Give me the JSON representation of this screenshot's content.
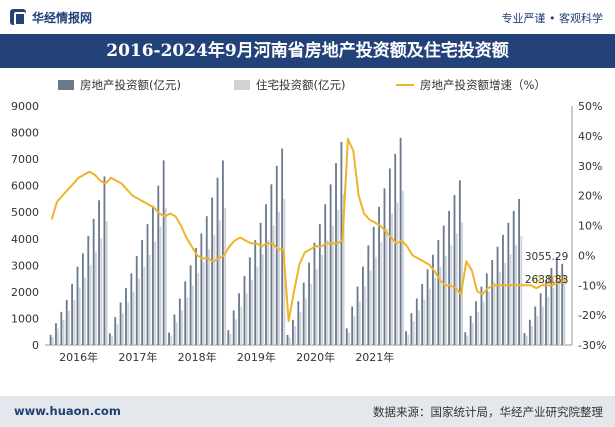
{
  "header": {
    "site_name": "华经情报网",
    "slogan": "专业严谨 • 客观科学"
  },
  "chart_data": {
    "type": "bar+line",
    "title": "2016-2024年9月河南省房地产投资额及住宅投资额",
    "legend_position": "top",
    "grid": false,
    "x_tick_labels": [
      "2016年",
      "2017年",
      "2018年",
      "2019年",
      "2020年",
      "2021年"
    ],
    "y_left": {
      "min": 0,
      "max": 9000,
      "step": 1000
    },
    "y_right": {
      "min": -30,
      "max": 50,
      "step": 10,
      "suffix": "%"
    },
    "months": [
      "2016-02",
      "2016-03",
      "2016-04",
      "2016-05",
      "2016-06",
      "2016-07",
      "2016-08",
      "2016-09",
      "2016-10",
      "2016-11",
      "2016-12",
      "2017-02",
      "2017-03",
      "2017-04",
      "2017-05",
      "2017-06",
      "2017-07",
      "2017-08",
      "2017-09",
      "2017-10",
      "2017-11",
      "2017-12",
      "2018-02",
      "2018-03",
      "2018-04",
      "2018-05",
      "2018-06",
      "2018-07",
      "2018-08",
      "2018-09",
      "2018-10",
      "2018-11",
      "2018-12",
      "2019-02",
      "2019-03",
      "2019-04",
      "2019-05",
      "2019-06",
      "2019-07",
      "2019-08",
      "2019-09",
      "2019-10",
      "2019-11",
      "2019-12",
      "2020-02",
      "2020-03",
      "2020-04",
      "2020-05",
      "2020-06",
      "2020-07",
      "2020-08",
      "2020-09",
      "2020-10",
      "2020-11",
      "2020-12",
      "2021-02",
      "2021-03",
      "2021-04",
      "2021-05",
      "2021-06",
      "2021-07",
      "2021-08",
      "2021-09",
      "2021-10",
      "2021-11",
      "2021-12",
      "2022-02",
      "2022-03",
      "2022-04",
      "2022-05",
      "2022-06",
      "2022-07",
      "2022-08",
      "2022-09",
      "2022-10",
      "2022-11",
      "2022-12",
      "2023-02",
      "2023-03",
      "2023-04",
      "2023-05",
      "2023-06",
      "2023-07",
      "2023-08",
      "2023-09",
      "2023-10",
      "2023-11",
      "2023-12",
      "2024-02",
      "2024-03",
      "2024-04",
      "2024-05",
      "2024-06",
      "2024-07",
      "2024-08",
      "2024-09"
    ],
    "series": [
      {
        "name": "房地产投资额(亿元)",
        "kind": "bar",
        "color": "#6b7a8f",
        "values": [
          380,
          820,
          1250,
          1700,
          2300,
          2950,
          3450,
          4100,
          4750,
          5450,
          6350,
          440,
          1050,
          1600,
          2150,
          2700,
          3350,
          3950,
          4550,
          5250,
          6000,
          6950,
          470,
          1150,
          1750,
          2400,
          3000,
          3650,
          4200,
          4850,
          5550,
          6300,
          6950,
          560,
          1300,
          1950,
          2600,
          3300,
          3950,
          4600,
          5300,
          6050,
          6750,
          7400,
          380,
          950,
          1650,
          2350,
          3100,
          3850,
          4550,
          5300,
          6050,
          6850,
          7650,
          630,
          1450,
          2200,
          2950,
          3750,
          4450,
          5200,
          5900,
          6650,
          7200,
          7800,
          520,
          1200,
          1750,
          2300,
          2850,
          3400,
          3950,
          4500,
          5050,
          5650,
          6200,
          480,
          1100,
          1650,
          2200,
          2700,
          3200,
          3700,
          4150,
          4600,
          5050,
          5500,
          450,
          950,
          1450,
          1950,
          2450,
          2900,
          3300,
          3055.29
        ]
      },
      {
        "name": "住宅投资额(亿元)",
        "kind": "bar",
        "color": "#cfd3d8",
        "values": [
          300,
          620,
          950,
          1280,
          1700,
          2170,
          2540,
          3020,
          3490,
          4010,
          4670,
          330,
          780,
          1190,
          1600,
          2010,
          2490,
          2940,
          3390,
          3900,
          4460,
          5170,
          350,
          860,
          1300,
          1790,
          2230,
          2720,
          3130,
          3610,
          4130,
          4690,
          5170,
          420,
          970,
          1450,
          1940,
          2460,
          2940,
          3420,
          3950,
          4500,
          5020,
          5510,
          280,
          710,
          1230,
          1750,
          2310,
          2870,
          3390,
          3950,
          4500,
          5100,
          5690,
          470,
          1080,
          1640,
          2200,
          2790,
          3310,
          3870,
          4390,
          4950,
          5360,
          5810,
          390,
          900,
          1300,
          1710,
          2120,
          2530,
          2940,
          3350,
          3760,
          4200,
          4620,
          360,
          820,
          1230,
          1640,
          2010,
          2380,
          2750,
          3090,
          3420,
          3760,
          4090,
          340,
          710,
          1080,
          1450,
          1820,
          2160,
          2460,
          2638.83
        ]
      },
      {
        "name": "房地产投资额增速（%）",
        "kind": "line",
        "color": "#f0b429",
        "values": [
          12,
          18,
          20,
          22,
          24,
          26,
          27,
          28,
          27,
          25,
          24,
          26,
          25,
          24,
          22,
          20,
          19,
          18,
          17,
          16,
          14,
          13,
          14,
          13,
          10,
          6,
          3,
          0,
          -1,
          -1,
          -2,
          -1,
          0,
          3,
          5,
          6,
          5,
          4,
          4,
          3,
          4,
          4,
          2,
          2,
          -22,
          -12,
          -3,
          1,
          2,
          3,
          3,
          4,
          4,
          4,
          5,
          39,
          35,
          20,
          14,
          12,
          11,
          10,
          8,
          6,
          4,
          5,
          3,
          0,
          -1,
          -2,
          -3,
          -5,
          -8,
          -10,
          -10,
          -11,
          -13,
          -2,
          -5,
          -12,
          -13,
          -11,
          -10,
          -10,
          -10,
          -10,
          -10,
          -10,
          -10,
          -10,
          -11,
          -10,
          -10,
          -10,
          -9,
          -9.1
        ]
      }
    ],
    "end_labels": {
      "bar_real_estate": "3055.29",
      "bar_residential": "2638.83",
      "growth": "-9.10%"
    }
  },
  "footer": {
    "url": "www.huaon.com",
    "source": "数据来源：国家统计局，华经产业研究院整理"
  }
}
